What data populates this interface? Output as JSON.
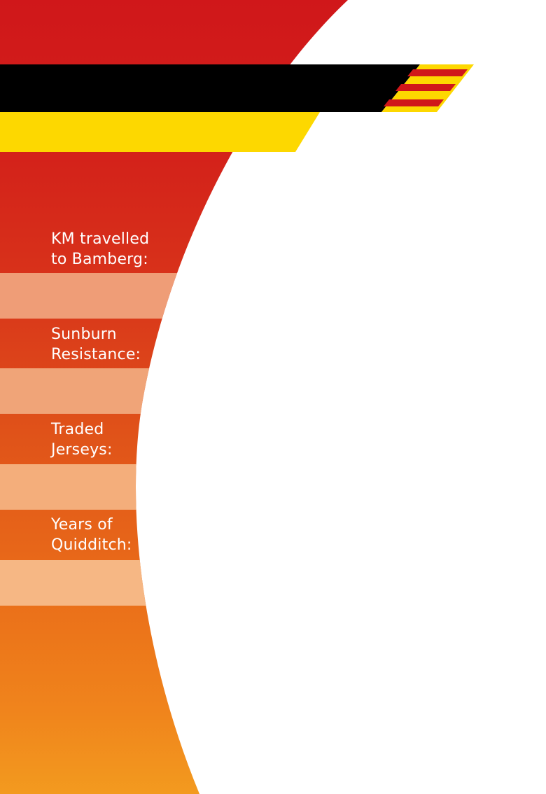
{
  "stats": [
    {
      "label": "KM travelled\nto Bamberg:",
      "value": ""
    },
    {
      "label": "Sunburn\nResistance:",
      "value": ""
    },
    {
      "label": "Traded\nJerseys:",
      "value": ""
    },
    {
      "label": "Years of\nQuidditch:",
      "value": ""
    }
  ],
  "colors": {
    "red": "#d0171a",
    "black": "#000000",
    "yellow": "#fdd800",
    "orange_bottom": "#f39a1f",
    "white": "#ffffff"
  }
}
